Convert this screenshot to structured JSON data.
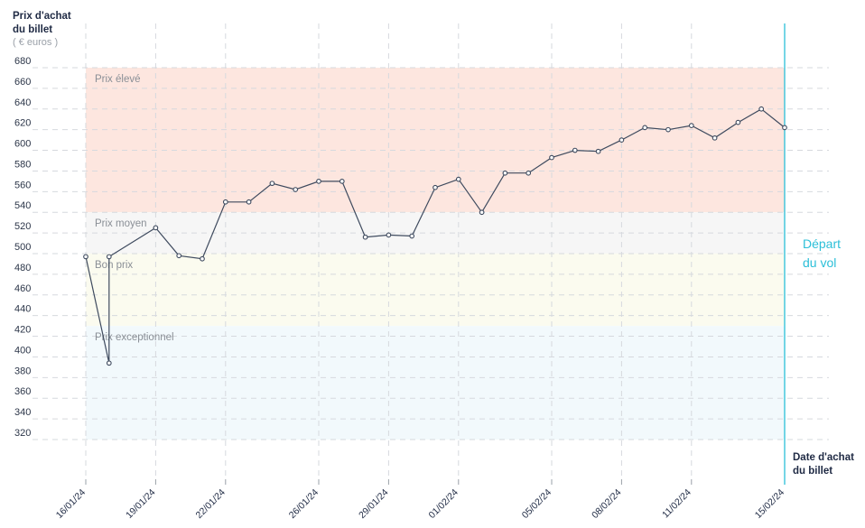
{
  "chart_data": {
    "type": "line",
    "ylabel_lines": [
      "Prix d'achat",
      "du billet"
    ],
    "yunit": "( € euros )",
    "xlabel_lines": [
      "Date d'achat",
      "du billet"
    ],
    "ylim": [
      320,
      680
    ],
    "yticks": [
      320,
      340,
      360,
      380,
      400,
      420,
      440,
      460,
      480,
      500,
      520,
      540,
      560,
      580,
      600,
      620,
      640,
      660,
      680
    ],
    "x_start": "16/01/24",
    "x_end": "15/02/24",
    "xticks": [
      "16/01/24",
      "19/01/24",
      "22/01/24",
      "26/01/24",
      "29/01/24",
      "01/02/24",
      "05/02/24",
      "08/02/24",
      "11/02/24",
      "15/02/24"
    ],
    "zones": [
      {
        "label": "Prix élevé",
        "from": 540,
        "to": 680,
        "color": "#fde6df"
      },
      {
        "label": "Prix moyen",
        "from": 500,
        "to": 540,
        "color": "#f6f6f6"
      },
      {
        "label": "Bon prix",
        "from": 430,
        "to": 500,
        "color": "#fbfbef"
      },
      {
        "label": "Prix exceptionnel",
        "from": 320,
        "to": 430,
        "color": "#f2f9fc"
      }
    ],
    "event": {
      "lines": [
        "Départ",
        "du vol"
      ],
      "color": "#2bbfd8"
    },
    "series": [
      {
        "line_color": "#3e4a5e",
        "points": [
          [
            "16/01/24",
            497
          ],
          [
            "17/01/24",
            394
          ],
          [
            "17/01/24",
            497
          ],
          [
            "19/01/24",
            525
          ],
          [
            "20/01/24",
            498
          ],
          [
            "21/01/24",
            495
          ],
          [
            "22/01/24",
            550
          ],
          [
            "23/01/24",
            550
          ],
          [
            "24/01/24",
            568
          ],
          [
            "25/01/24",
            562
          ],
          [
            "26/01/24",
            570
          ],
          [
            "27/01/24",
            570
          ],
          [
            "28/01/24",
            516
          ],
          [
            "29/01/24",
            518
          ],
          [
            "30/01/24",
            517
          ],
          [
            "31/01/24",
            564
          ],
          [
            "01/02/24",
            572
          ],
          [
            "02/02/24",
            540
          ],
          [
            "03/02/24",
            578
          ],
          [
            "04/02/24",
            578
          ],
          [
            "05/02/24",
            593
          ],
          [
            "06/02/24",
            600
          ],
          [
            "07/02/24",
            599
          ],
          [
            "08/02/24",
            610
          ],
          [
            "09/02/24",
            622
          ],
          [
            "10/02/24",
            620
          ],
          [
            "11/02/24",
            624
          ],
          [
            "12/02/24",
            612
          ],
          [
            "13/02/24",
            627
          ],
          [
            "14/02/24",
            640
          ],
          [
            "15/02/24",
            622
          ]
        ]
      }
    ]
  }
}
